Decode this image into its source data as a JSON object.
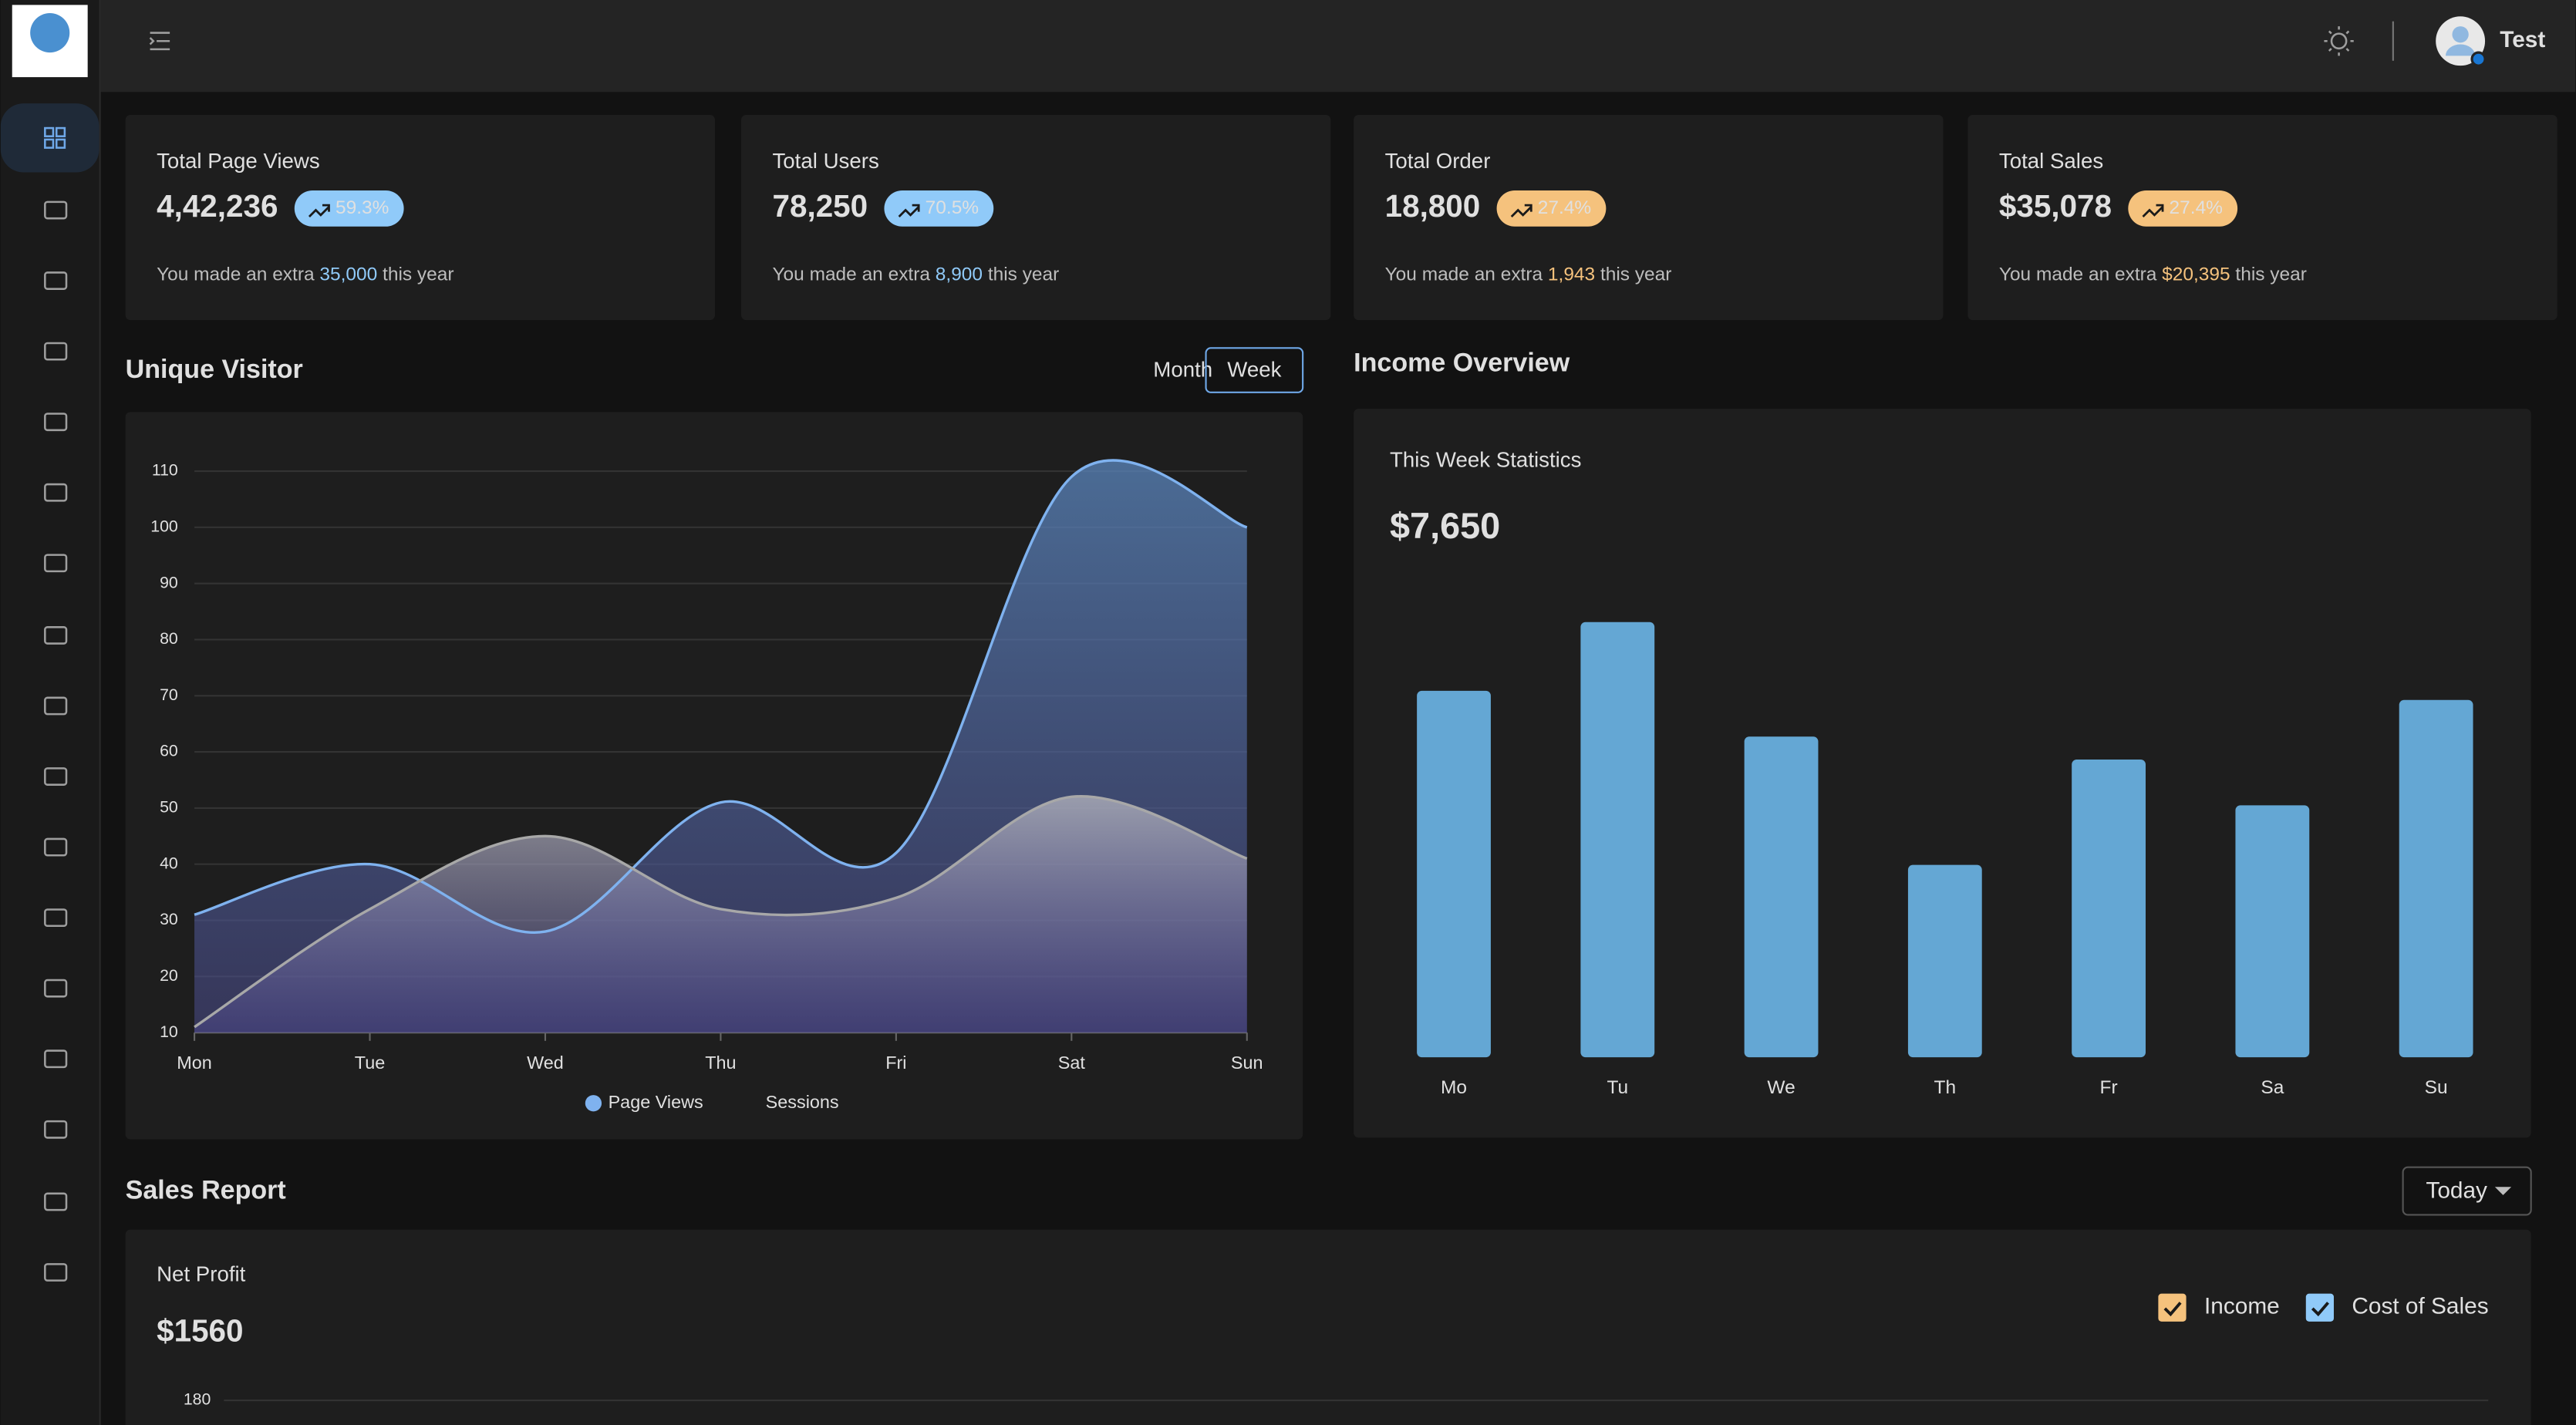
{
  "header": {
    "user": "Test"
  },
  "cards": [
    {
      "title": "Total Page Views",
      "value": "4,42,236",
      "badge": "59.3%",
      "color": "#90caf9",
      "note": [
        "You made an extra ",
        "35,000",
        " this year"
      ]
    },
    {
      "title": "Total Users",
      "value": "78,250",
      "badge": "70.5%",
      "color": "#90caf9",
      "note": [
        "You made an extra ",
        "8,900",
        " this year"
      ]
    },
    {
      "title": "Total Order",
      "value": "18,800",
      "badge": "27.4%",
      "color": "#f5c27d",
      "note": [
        "You made an extra ",
        "1,943",
        " this year"
      ]
    },
    {
      "title": "Total Sales",
      "value": "$35,078",
      "badge": "27.4%",
      "color": "#f5c27d",
      "note": [
        "You made an extra ",
        "$20,395",
        " this year"
      ]
    }
  ],
  "chart_data": [
    {
      "type": "area",
      "title": "Unique Visitor",
      "toggles": [
        "Month",
        "Week"
      ],
      "categories": [
        "Mon",
        "Tue",
        "Wed",
        "Thu",
        "Fri",
        "Sat",
        "Sun"
      ],
      "series": [
        {
          "name": "Page Views",
          "color": "#7fb2ef",
          "values": [
            31,
            40,
            28,
            51,
            42,
            109,
            100
          ]
        },
        {
          "name": "Sessions",
          "color": "#a8a8a8",
          "values": [
            11,
            32,
            45,
            32,
            34,
            52,
            41
          ]
        }
      ],
      "ylim": [
        10,
        110
      ],
      "yticks": [
        10,
        20,
        30,
        40,
        50,
        60,
        70,
        80,
        90,
        100,
        110
      ],
      "grid": true
    },
    {
      "type": "bar",
      "title": "Income Overview",
      "subtitle": "This Week Statistics",
      "total": "$7,650",
      "categories": [
        "Mo",
        "Tu",
        "We",
        "Th",
        "Fr",
        "Sa",
        "Su"
      ],
      "values": [
        80,
        95,
        70,
        42,
        65,
        55,
        78
      ],
      "color": "#64a7d4",
      "ylim": [
        0,
        100
      ]
    },
    {
      "type": "bar",
      "title": "Sales Report",
      "filter": "Today",
      "subtitle": "Net Profit",
      "total": "$1560",
      "series": [
        {
          "name": "Income",
          "color": "#f5c27d"
        },
        {
          "name": "Cost of Sales",
          "color": "#90caf9"
        }
      ],
      "yticks": [
        180
      ],
      "grid": true
    }
  ]
}
